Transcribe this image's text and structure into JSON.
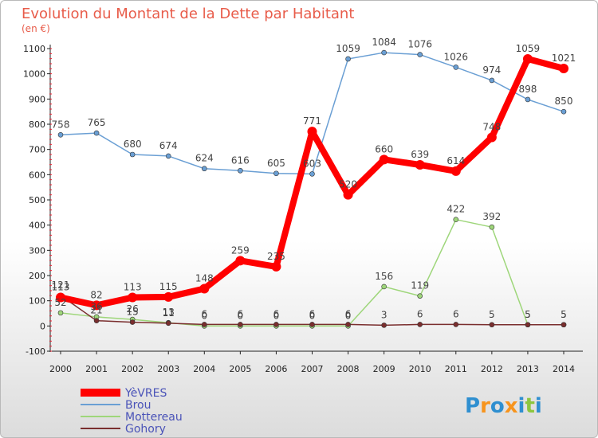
{
  "chart_data": {
    "type": "line",
    "title": "Evolution du Montant de la Dette par Habitant",
    "subtitle": "(en €)",
    "x": [
      "2000",
      "2001",
      "2002",
      "2003",
      "2004",
      "2005",
      "2006",
      "2007",
      "2008",
      "2009",
      "2010",
      "2011",
      "2012",
      "2013",
      "2014"
    ],
    "ylim": [
      -100,
      1100
    ],
    "yticks": [
      -100,
      0,
      100,
      200,
      300,
      400,
      500,
      600,
      700,
      800,
      900,
      1000,
      1100
    ],
    "grid": false,
    "legend_position": "bottom-left",
    "series": [
      {
        "name": "YèVRES",
        "color": "#ff0000",
        "values": [
          113,
          82,
          113,
          115,
          148,
          259,
          235,
          771,
          520,
          660,
          639,
          614,
          748,
          1059,
          1021
        ]
      },
      {
        "name": "Brou",
        "color": "#6a9fd4",
        "values": [
          758,
          765,
          680,
          674,
          624,
          616,
          605,
          603,
          1059,
          1084,
          1076,
          1026,
          974,
          898,
          850
        ]
      },
      {
        "name": "Mottereau",
        "color": "#9ed67a",
        "values": [
          52,
          36,
          26,
          13,
          0,
          0,
          0,
          0,
          0,
          156,
          119,
          422,
          392,
          5,
          5
        ]
      },
      {
        "name": "Gohory",
        "color": "#7a2e2e",
        "values": [
          121,
          21,
          15,
          11,
          6,
          6,
          6,
          6,
          6,
          3,
          6,
          6,
          5,
          5,
          5
        ]
      }
    ]
  },
  "logo": {
    "text": "Proxiti",
    "letters": [
      "P",
      "r",
      "o",
      "x",
      "i",
      "t",
      "i"
    ],
    "colors": [
      "#2f8fd0",
      "#f7941d",
      "#2f8fd0",
      "#f7941d",
      "#2f8fd0",
      "#8dc63f",
      "#2f8fd0"
    ]
  }
}
